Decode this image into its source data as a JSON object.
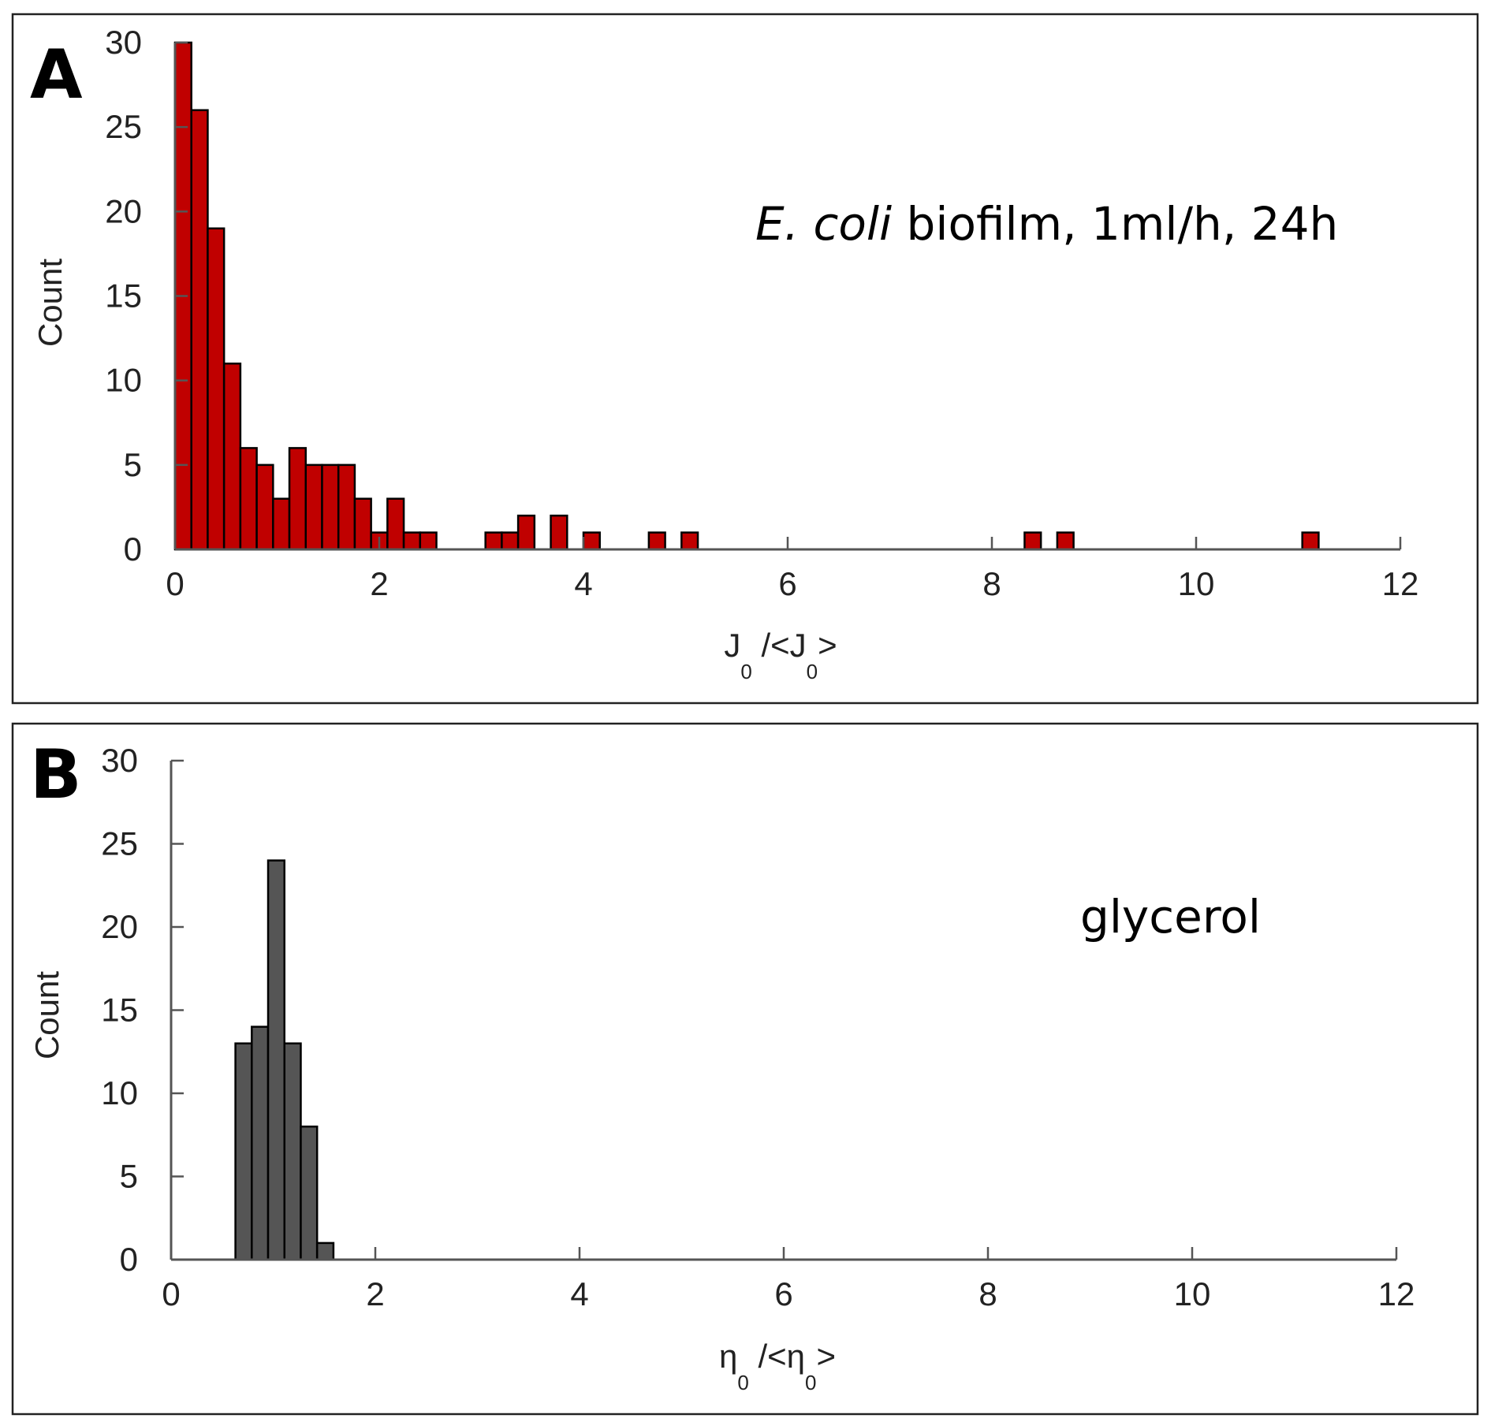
{
  "chart_data": [
    {
      "type": "bar",
      "panel_label": "A",
      "annotation_italic": "E. coli",
      "annotation_rest": " biofilm, 1ml/h, 24h",
      "xlabel_main": "J",
      "xlabel_sub1": "0",
      "xlabel_mid": " /<J",
      "xlabel_sub2": "0",
      "xlabel_end": ">",
      "ylabel": "Count",
      "xlim": [
        0,
        12
      ],
      "ylim": [
        0,
        30
      ],
      "xticks": [
        "0",
        "2",
        "4",
        "6",
        "8",
        "10",
        "12"
      ],
      "yticks": [
        "0",
        "5",
        "10",
        "15",
        "20",
        "25",
        "30"
      ],
      "bin_width": 0.16,
      "bar_color": "#c00000",
      "bins": [
        {
          "x": 0.0,
          "count": 30
        },
        {
          "x": 0.16,
          "count": 26
        },
        {
          "x": 0.32,
          "count": 19
        },
        {
          "x": 0.48,
          "count": 11
        },
        {
          "x": 0.64,
          "count": 6
        },
        {
          "x": 0.8,
          "count": 5
        },
        {
          "x": 0.96,
          "count": 3
        },
        {
          "x": 1.12,
          "count": 6
        },
        {
          "x": 1.28,
          "count": 5
        },
        {
          "x": 1.44,
          "count": 5
        },
        {
          "x": 1.6,
          "count": 5
        },
        {
          "x": 1.76,
          "count": 3
        },
        {
          "x": 1.92,
          "count": 1
        },
        {
          "x": 2.08,
          "count": 3
        },
        {
          "x": 2.24,
          "count": 1
        },
        {
          "x": 2.4,
          "count": 1
        },
        {
          "x": 3.04,
          "count": 1
        },
        {
          "x": 3.2,
          "count": 1
        },
        {
          "x": 3.36,
          "count": 2
        },
        {
          "x": 3.68,
          "count": 2
        },
        {
          "x": 4.0,
          "count": 1
        },
        {
          "x": 4.64,
          "count": 1
        },
        {
          "x": 4.96,
          "count": 1
        },
        {
          "x": 8.32,
          "count": 1
        },
        {
          "x": 8.64,
          "count": 1
        },
        {
          "x": 11.04,
          "count": 1
        }
      ]
    },
    {
      "type": "bar",
      "panel_label": "B",
      "annotation_italic": "",
      "annotation_rest": "glycerol",
      "xlabel_main": "η",
      "xlabel_sub1": "0",
      "xlabel_mid": " /<η",
      "xlabel_sub2": "0",
      "xlabel_end": ">",
      "ylabel": "Count",
      "xlim": [
        0,
        12
      ],
      "ylim": [
        0,
        30
      ],
      "xticks": [
        "0",
        "2",
        "4",
        "6",
        "8",
        "10",
        "12"
      ],
      "yticks": [
        "0",
        "5",
        "10",
        "15",
        "20",
        "25",
        "30"
      ],
      "bin_width": 0.16,
      "bar_color": "#555555",
      "bins": [
        {
          "x": 0.63,
          "count": 13
        },
        {
          "x": 0.79,
          "count": 14
        },
        {
          "x": 0.95,
          "count": 24
        },
        {
          "x": 1.11,
          "count": 13
        },
        {
          "x": 1.27,
          "count": 8
        },
        {
          "x": 1.43,
          "count": 1
        }
      ]
    }
  ]
}
